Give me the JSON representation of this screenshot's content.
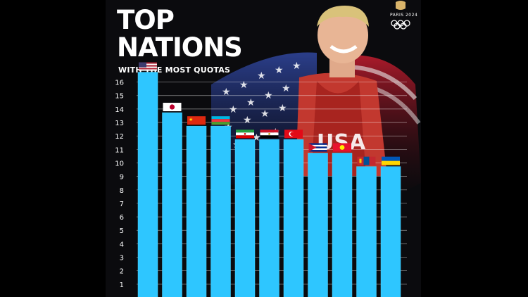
{
  "header": {
    "title_line1": "TOP",
    "title_line2": "NATIONS",
    "subtitle": "WITH THE MOST QUOTAS"
  },
  "brand": {
    "text": "PARIS 2024"
  },
  "colors": {
    "bar": "#2ec6ff",
    "bar_top": "#49d3ff",
    "gridline": "#ffffff",
    "background": "#0b0b0e"
  },
  "chart_data": {
    "type": "bar",
    "categories": [
      "USA",
      "Japan",
      "China",
      "Azerbaijan",
      "Iran",
      "Egypt",
      "Turkey",
      "Cuba",
      "Kyrgyzstan",
      "Mongolia",
      "Ukraine"
    ],
    "values": [
      16,
      13,
      12,
      12,
      11,
      11,
      11,
      10,
      10,
      9,
      9
    ],
    "flags": [
      "usa-flag",
      "japan-flag",
      "china-flag",
      "azerbaijan-flag",
      "iran-flag",
      "egypt-flag",
      "turkey-flag",
      "cuba-flag",
      "kyrgyzstan-flag",
      "mongolia-flag",
      "ukraine-flag"
    ],
    "yticks": [
      "1",
      "2",
      "3",
      "4",
      "5",
      "6",
      "7",
      "8",
      "9",
      "10",
      "11",
      "12",
      "13",
      "14",
      "15",
      "16"
    ],
    "ylim": [
      0,
      16
    ],
    "grid": true,
    "title": "TOP NATIONS",
    "subtitle": "WITH THE MOST QUOTAS",
    "xlabel": "",
    "ylabel": ""
  }
}
